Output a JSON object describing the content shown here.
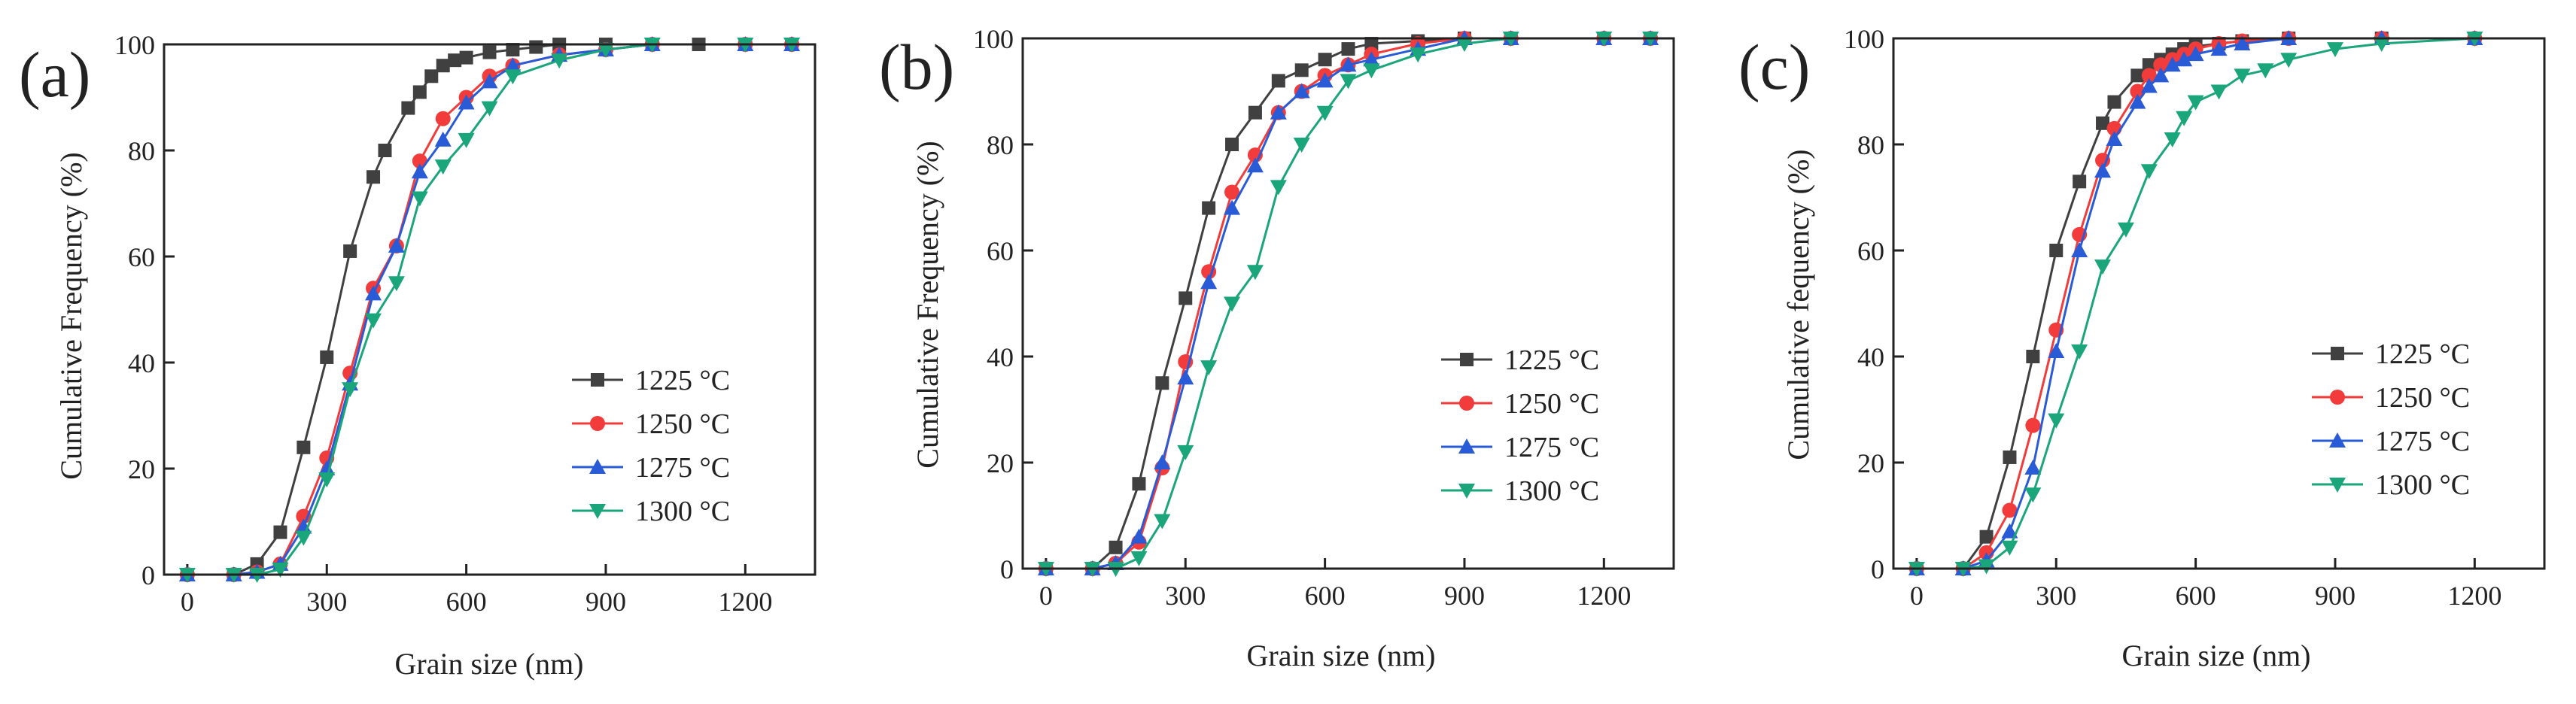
{
  "chart_data": [
    {
      "type": "line",
      "panel_label": "(a)",
      "xlabel": "Grain size (nm)",
      "ylabel": "Cumulative Frequency (%)",
      "xlim": [
        -50,
        1350
      ],
      "ylim": [
        0,
        100
      ],
      "xticks": [
        0,
        300,
        600,
        900,
        1200
      ],
      "yticks": [
        0,
        20,
        40,
        60,
        80,
        100
      ],
      "legend_position": "center-right",
      "series": [
        {
          "name": "1225 °C",
          "color": "#404040",
          "marker": "square",
          "x": [
            0,
            100,
            150,
            200,
            250,
            300,
            350,
            400,
            425,
            475,
            500,
            525,
            550,
            575,
            600,
            650,
            700,
            750,
            800,
            900,
            1000,
            1100,
            1200,
            1300
          ],
          "y": [
            0,
            0,
            2,
            8,
            24,
            41,
            61,
            75,
            80,
            88,
            91,
            94,
            96,
            97,
            97.5,
            98.5,
            99,
            99.5,
            100,
            100,
            100,
            100,
            100,
            100
          ]
        },
        {
          "name": "1250 °C",
          "color": "#f23b3b",
          "marker": "circle",
          "x": [
            0,
            100,
            150,
            200,
            250,
            300,
            350,
            400,
            450,
            500,
            550,
            600,
            650,
            700,
            800,
            900,
            1000,
            1200,
            1300
          ],
          "y": [
            0,
            0,
            0.5,
            2,
            11,
            22,
            38,
            54,
            62,
            78,
            86,
            90,
            94,
            96,
            98,
            99,
            100,
            100,
            100
          ]
        },
        {
          "name": "1275 °C",
          "color": "#2a5bd7",
          "marker": "triangle-up",
          "x": [
            0,
            100,
            150,
            200,
            250,
            300,
            350,
            400,
            450,
            500,
            550,
            600,
            650,
            700,
            800,
            900,
            1000,
            1200,
            1300
          ],
          "y": [
            0,
            0,
            0.5,
            2,
            9,
            20,
            36,
            53,
            62,
            76,
            82,
            89,
            93,
            96,
            98,
            99,
            100,
            100,
            100
          ]
        },
        {
          "name": "1300 °C",
          "color": "#1aa57a",
          "marker": "triangle-down",
          "x": [
            0,
            100,
            150,
            200,
            250,
            300,
            350,
            400,
            450,
            500,
            550,
            600,
            650,
            700,
            800,
            900,
            1000,
            1200,
            1300
          ],
          "y": [
            0,
            0,
            0,
            1,
            7,
            18,
            35,
            48,
            55,
            71,
            77,
            82,
            88,
            94,
            97,
            99,
            100,
            100,
            100
          ]
        }
      ]
    },
    {
      "type": "line",
      "panel_label": "(b)",
      "xlabel": "Grain size (nm)",
      "ylabel": "Cumulative Frequency (%)",
      "xlim": [
        -50,
        1350
      ],
      "ylim": [
        0,
        100
      ],
      "xticks": [
        0,
        300,
        600,
        900,
        1200
      ],
      "yticks": [
        0,
        20,
        40,
        60,
        80,
        100
      ],
      "legend_position": "center-right",
      "series": [
        {
          "name": "1225 °C",
          "color": "#404040",
          "marker": "square",
          "x": [
            0,
            100,
            150,
            200,
            250,
            300,
            350,
            400,
            450,
            500,
            550,
            600,
            650,
            700,
            800,
            900,
            1000,
            1200,
            1300
          ],
          "y": [
            0,
            0,
            4,
            16,
            35,
            51,
            68,
            80,
            86,
            92,
            94,
            96,
            98,
            99,
            99.5,
            100,
            100,
            100,
            100
          ]
        },
        {
          "name": "1250 °C",
          "color": "#f23b3b",
          "marker": "circle",
          "x": [
            0,
            100,
            150,
            200,
            250,
            300,
            350,
            400,
            450,
            500,
            550,
            600,
            650,
            700,
            800,
            900,
            1000,
            1200,
            1300
          ],
          "y": [
            0,
            0,
            1,
            5,
            19,
            39,
            56,
            71,
            78,
            86,
            90,
            93,
            95,
            97,
            99,
            100,
            100,
            100,
            100
          ]
        },
        {
          "name": "1275 °C",
          "color": "#2a5bd7",
          "marker": "triangle-up",
          "x": [
            0,
            100,
            150,
            200,
            250,
            300,
            350,
            400,
            450,
            500,
            550,
            600,
            650,
            700,
            800,
            900,
            1000,
            1200,
            1300
          ],
          "y": [
            0,
            0,
            1,
            6,
            20,
            36,
            54,
            68,
            76,
            86,
            90,
            92,
            95,
            96,
            98,
            100,
            100,
            100,
            100
          ]
        },
        {
          "name": "1300 °C",
          "color": "#1aa57a",
          "marker": "triangle-down",
          "x": [
            0,
            100,
            150,
            200,
            250,
            300,
            350,
            400,
            450,
            500,
            550,
            600,
            650,
            700,
            800,
            900,
            1000,
            1200,
            1300
          ],
          "y": [
            0,
            0,
            0,
            2,
            9,
            22,
            38,
            50,
            56,
            72,
            80,
            86,
            92,
            94,
            97,
            99,
            100,
            100,
            100
          ]
        }
      ]
    },
    {
      "type": "line",
      "panel_label": "(c)",
      "xlabel": "Grain size (nm)",
      "ylabel": "Cumulative fequency (%)",
      "xlim": [
        -50,
        1350
      ],
      "ylim": [
        0,
        100
      ],
      "xticks": [
        0,
        300,
        600,
        900,
        1200
      ],
      "yticks": [
        0,
        20,
        40,
        60,
        80,
        100
      ],
      "legend_position": "center-right",
      "series": [
        {
          "name": "1225 °C",
          "color": "#404040",
          "marker": "square",
          "x": [
            0,
            100,
            150,
            200,
            250,
            300,
            350,
            400,
            425,
            475,
            500,
            525,
            550,
            575,
            600,
            650,
            700,
            800,
            1000,
            1200
          ],
          "y": [
            0,
            0,
            6,
            21,
            40,
            60,
            73,
            84,
            88,
            93,
            95,
            96,
            97,
            98,
            98.5,
            99,
            99.5,
            100,
            100,
            100
          ]
        },
        {
          "name": "1250 °C",
          "color": "#f23b3b",
          "marker": "circle",
          "x": [
            0,
            100,
            150,
            200,
            250,
            300,
            350,
            400,
            425,
            475,
            500,
            525,
            550,
            575,
            600,
            650,
            700,
            800,
            1000,
            1200
          ],
          "y": [
            0,
            0,
            3,
            11,
            27,
            45,
            63,
            77,
            83,
            90,
            93,
            95,
            96,
            97,
            98,
            99,
            99.5,
            100,
            100,
            100
          ]
        },
        {
          "name": "1275 °C",
          "color": "#2a5bd7",
          "marker": "triangle-up",
          "x": [
            0,
            100,
            150,
            200,
            250,
            300,
            350,
            400,
            425,
            475,
            500,
            525,
            550,
            575,
            600,
            650,
            700,
            800,
            1000,
            1200
          ],
          "y": [
            0,
            0,
            1.5,
            7,
            19,
            41,
            60,
            75,
            81,
            88,
            91,
            93,
            95,
            96,
            97,
            98,
            99,
            100,
            100,
            100
          ]
        },
        {
          "name": "1300 °C",
          "color": "#1aa57a",
          "marker": "triangle-down",
          "x": [
            0,
            100,
            150,
            200,
            250,
            300,
            350,
            400,
            450,
            500,
            550,
            575,
            600,
            650,
            700,
            750,
            800,
            900,
            1000,
            1200
          ],
          "y": [
            0,
            0,
            0.5,
            4,
            14,
            28,
            41,
            57,
            64,
            75,
            81,
            85,
            88,
            90,
            93,
            94,
            96,
            98,
            99,
            100
          ]
        }
      ]
    }
  ]
}
